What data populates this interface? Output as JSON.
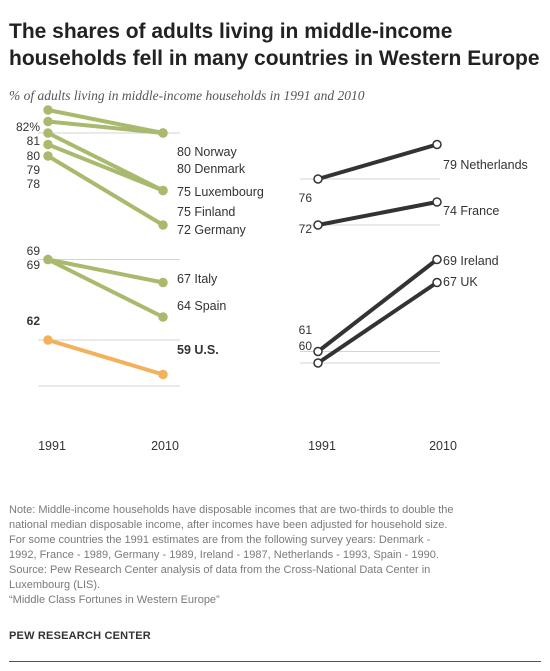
{
  "title": "The shares of adults living in middle-income households fell in many countries in Western Europe",
  "subtitle": "% of adults living in middle-income households in 1991 and 2010",
  "colors": {
    "green": "#a9b96e",
    "orange": "#f2b15a",
    "dark": "#333333",
    "grid": "#d4d4d4"
  },
  "chart_data": [
    {
      "type": "line",
      "x": [
        "1991",
        "2010"
      ],
      "value_suffix_first_top": "%",
      "series": [
        {
          "name": "Norway",
          "values": [
            82,
            80
          ],
          "color": "green"
        },
        {
          "name": "Denmark",
          "values": [
            81,
            80
          ],
          "color": "green"
        },
        {
          "name": "Luxembourg",
          "values": [
            80,
            75
          ],
          "color": "green"
        },
        {
          "name": "Finland",
          "values": [
            79,
            75
          ],
          "color": "green"
        },
        {
          "name": "Germany",
          "values": [
            78,
            72
          ],
          "color": "green"
        },
        {
          "name": "Italy",
          "values": [
            69,
            67
          ],
          "color": "green"
        },
        {
          "name": "Spain",
          "values": [
            69,
            64
          ],
          "color": "green"
        },
        {
          "name": "U.S.",
          "values": [
            62,
            59
          ],
          "color": "orange",
          "bold": true
        }
      ],
      "left_labels": [
        "82%",
        "81",
        "80",
        "79",
        "78",
        "69",
        "69",
        "62"
      ],
      "right_labels": [
        "80 Norway",
        "80 Denmark",
        "75 Luxembourg",
        "75 Finland",
        "72 Germany",
        "67 Italy",
        "64 Spain",
        "59 U.S."
      ]
    },
    {
      "type": "line",
      "x": [
        "1991",
        "2010"
      ],
      "series": [
        {
          "name": "Netherlands",
          "values": [
            76,
            79
          ],
          "color": "dark"
        },
        {
          "name": "France",
          "values": [
            72,
            74
          ],
          "color": "dark"
        },
        {
          "name": "Ireland",
          "values": [
            61,
            69
          ],
          "color": "dark"
        },
        {
          "name": "UK",
          "values": [
            60,
            67
          ],
          "color": "dark"
        }
      ],
      "left_labels": [
        "76",
        "72",
        "61",
        "60"
      ],
      "right_labels": [
        "79 Netherlands",
        "74 France",
        "69 Ireland",
        "67 UK"
      ]
    }
  ],
  "note_lines": [
    "Note: Middle-income households have disposable incomes that are two-thirds to double the",
    "national median disposable income, after incomes have been adjusted for household size.",
    "For some countries the 1991 estimates are from the following survey years: Denmark -",
    "1992, France - 1989, Germany - 1989, Ireland - 1987, Netherlands - 1993, Spain - 1990.",
    "Source: Pew Research Center analysis of data from the Cross-National Data Center in",
    "Luxembourg (LIS).",
    "“Middle Class Fortunes in Western Europe”"
  ],
  "credit": "PEW RESEARCH CENTER"
}
